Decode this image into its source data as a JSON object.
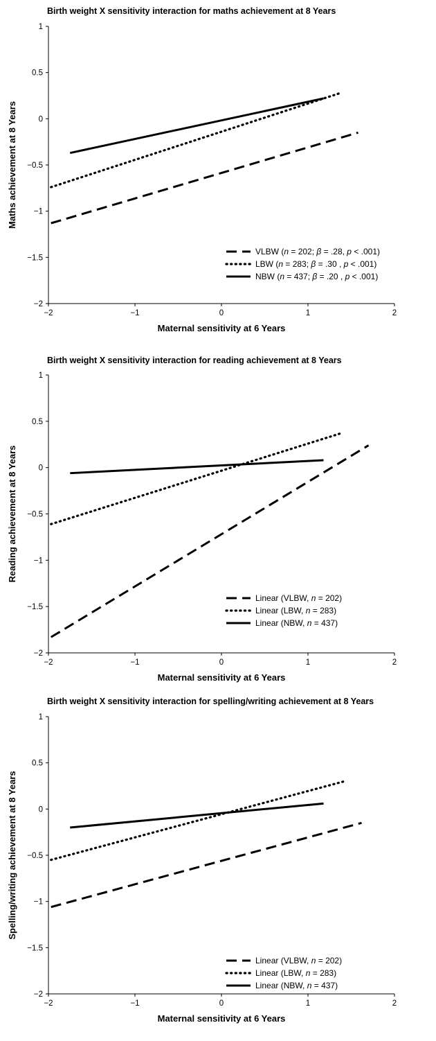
{
  "chart_data": [
    {
      "type": "line",
      "title": "Birth  weight X sensitivity interaction for maths  achievement at 8 Years",
      "xlabel": "Maternal sensitivity at 6 Years",
      "ylabel": "Maths  achievement at 8 Years",
      "xlim": [
        -2,
        2
      ],
      "ylim": [
        -2,
        1
      ],
      "xticks": [
        "−2",
        "−1",
        "0",
        "1",
        "2"
      ],
      "yticks": [
        "1",
        "0.5",
        "0",
        "−0.5",
        "−1",
        "−1.5",
        "−2"
      ],
      "grid": false,
      "legend_position": "bottom-right",
      "series": [
        {
          "name": "VLBW (n = 202; β = .28, p < .001)",
          "style": "dashed",
          "x": [
            -1.97,
            1.58
          ],
          "y": [
            -1.13,
            -0.15
          ],
          "legend_rich": [
            {
              "t": "VLBW ("
            },
            {
              "t": "n",
              "i": true
            },
            {
              "t": " = 202; "
            },
            {
              "t": "β",
              "i": true
            },
            {
              "t": " = .28, "
            },
            {
              "t": "p",
              "i": true
            },
            {
              "t": " < .001)"
            }
          ]
        },
        {
          "name": "LBW (n = 283; β = .30 , p < .001)",
          "style": "dotted",
          "x": [
            -1.97,
            1.38
          ],
          "y": [
            -0.74,
            0.28
          ],
          "legend_rich": [
            {
              "t": "LBW ("
            },
            {
              "t": "n",
              "i": true
            },
            {
              "t": " = 283; "
            },
            {
              "t": "β",
              "i": true
            },
            {
              "t": " = .30 , "
            },
            {
              "t": "p",
              "i": true
            },
            {
              "t": " < .001)"
            }
          ]
        },
        {
          "name": "NBW (n = 437; β = .20 , p < .001)",
          "style": "solid",
          "x": [
            -1.75,
            1.18
          ],
          "y": [
            -0.37,
            0.22
          ],
          "legend_rich": [
            {
              "t": "NBW ("
            },
            {
              "t": "n",
              "i": true
            },
            {
              "t": " = 437; "
            },
            {
              "t": "β",
              "i": true
            },
            {
              "t": " = .20 , "
            },
            {
              "t": "p",
              "i": true
            },
            {
              "t": " < .001)"
            }
          ]
        }
      ]
    },
    {
      "type": "line",
      "title": "Birth  weight X sensitivity interaction for  reading achievement at 8 Years",
      "xlabel": "Maternal sensitivity at 6 Years",
      "ylabel": "Reading  achievement at 8 Years",
      "xlim": [
        -2,
        2
      ],
      "ylim": [
        -2,
        1
      ],
      "xticks": [
        "−2",
        "−1",
        "0",
        "1",
        "2"
      ],
      "yticks": [
        "1",
        "0.5",
        "0",
        "−0.5",
        "−1",
        "−1.5",
        "−2"
      ],
      "grid": false,
      "legend_position": "bottom-right",
      "series": [
        {
          "name": "Linear (VLBW, n = 202)",
          "style": "dashed",
          "x": [
            -1.97,
            1.7
          ],
          "y": [
            -1.83,
            0.24
          ],
          "legend_rich": [
            {
              "t": "Linear (VLBW, "
            },
            {
              "t": "n",
              "i": true
            },
            {
              "t": " = 202)"
            }
          ]
        },
        {
          "name": "Linear (LBW, n = 283)",
          "style": "dotted",
          "x": [
            -1.97,
            1.38
          ],
          "y": [
            -0.61,
            0.37
          ],
          "legend_rich": [
            {
              "t": "Linear (LBW, "
            },
            {
              "t": "n",
              "i": true
            },
            {
              "t": " = 283)"
            }
          ]
        },
        {
          "name": "Linear (NBW, n = 437)",
          "style": "solid",
          "x": [
            -1.75,
            1.18
          ],
          "y": [
            -0.06,
            0.08
          ],
          "legend_rich": [
            {
              "t": "Linear (NBW, "
            },
            {
              "t": "n",
              "i": true
            },
            {
              "t": " = 437)"
            }
          ]
        }
      ]
    },
    {
      "type": "line",
      "title": "Birth  weight X sensitivity interaction for spelling/writing achievement at 8 Years",
      "xlabel": "Maternal sensitivity at 6 Years",
      "ylabel": "Spelling/writing achievement at 8 Years",
      "xlim": [
        -2,
        2
      ],
      "ylim": [
        -2,
        1
      ],
      "xticks": [
        "−2",
        "−1",
        "0",
        "1",
        "2"
      ],
      "yticks": [
        "1",
        "0.5",
        "0",
        "−0.5",
        "−1",
        "−1.5",
        "−2"
      ],
      "grid": false,
      "legend_position": "bottom-right",
      "series": [
        {
          "name": "Linear (VLBW, n = 202)",
          "style": "dashed",
          "x": [
            -1.97,
            1.62
          ],
          "y": [
            -1.06,
            -0.15
          ],
          "legend_rich": [
            {
              "t": "Linear (VLBW, "
            },
            {
              "t": "n",
              "i": true
            },
            {
              "t": " = 202)"
            }
          ]
        },
        {
          "name": "Linear (LBW, n = 283)",
          "style": "dotted",
          "x": [
            -1.97,
            1.42
          ],
          "y": [
            -0.55,
            0.3
          ],
          "legend_rich": [
            {
              "t": "Linear (LBW, "
            },
            {
              "t": "n",
              "i": true
            },
            {
              "t": " = 283)"
            }
          ]
        },
        {
          "name": "Linear (NBW, n = 437)",
          "style": "solid",
          "x": [
            -1.75,
            1.18
          ],
          "y": [
            -0.2,
            0.06
          ],
          "legend_rich": [
            {
              "t": "Linear (NBW, "
            },
            {
              "t": "n",
              "i": true
            },
            {
              "t": " = 437)"
            }
          ]
        }
      ]
    }
  ]
}
